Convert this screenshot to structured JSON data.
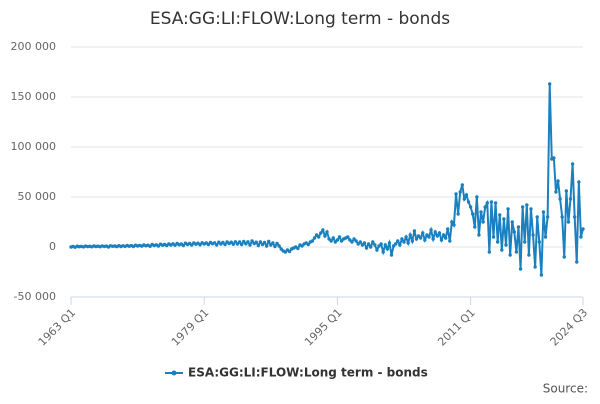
{
  "chart_data": {
    "type": "line",
    "title": "ESA:GG:LI:FLOW:Long term - bonds",
    "source": "Source:",
    "categories": [
      "1963 Q1",
      null,
      null,
      null,
      null,
      null,
      null,
      null,
      null,
      null,
      null,
      null,
      null,
      null,
      null,
      null,
      null,
      null,
      null,
      null,
      null,
      null,
      null,
      null,
      null,
      null,
      null,
      null,
      null,
      null,
      null,
      null,
      null,
      null,
      null,
      null,
      null,
      null,
      null,
      null,
      null,
      null,
      null,
      null,
      null,
      null,
      null,
      null,
      null,
      null,
      null,
      null,
      null,
      null,
      null,
      null,
      null,
      null,
      null,
      null,
      null,
      null,
      null,
      null,
      "1979 Q1",
      null,
      null,
      null,
      null,
      null,
      null,
      null,
      null,
      null,
      null,
      null,
      null,
      null,
      null,
      null,
      null,
      null,
      null,
      null,
      null,
      null,
      null,
      null,
      null,
      null,
      null,
      null,
      null,
      null,
      null,
      null,
      null,
      null,
      null,
      null,
      null,
      null,
      null,
      null,
      null,
      null,
      null,
      null,
      null,
      null,
      null,
      null,
      null,
      null,
      null,
      null,
      null,
      null,
      null,
      null,
      null,
      null,
      null,
      null,
      null,
      null,
      null,
      null,
      "1995 Q1",
      null,
      null,
      null,
      null,
      null,
      null,
      null,
      null,
      null,
      null,
      null,
      null,
      null,
      null,
      null,
      null,
      null,
      null,
      null,
      null,
      null,
      null,
      null,
      null,
      null,
      null,
      null,
      null,
      null,
      null,
      null,
      null,
      null,
      null,
      null,
      null,
      null,
      null,
      null,
      null,
      null,
      null,
      null,
      null,
      null,
      null,
      null,
      null,
      null,
      null,
      null,
      null,
      null,
      null,
      null,
      null,
      null,
      null,
      null,
      null,
      null,
      null,
      null,
      "2011 Q1",
      null,
      null,
      null,
      null,
      null,
      null,
      null,
      null,
      null,
      null,
      null,
      null,
      null,
      null,
      null,
      null,
      null,
      null,
      null,
      null,
      null,
      null,
      null,
      null,
      null,
      null,
      null,
      null,
      null,
      null,
      null,
      null,
      null,
      null,
      null,
      null,
      null,
      null,
      null,
      null,
      null,
      null,
      null,
      null,
      null,
      null,
      null,
      null,
      null,
      null,
      null,
      null,
      null,
      "2024 Q3"
    ],
    "series": [
      {
        "name": "ESA:GG:LI:FLOW:Long term - bonds",
        "color": "#1a80c0",
        "values": [
          0,
          500,
          -200,
          800,
          300,
          600,
          100,
          900,
          400,
          700,
          200,
          1000,
          500,
          800,
          300,
          1100,
          600,
          900,
          0,
          1200,
          700,
          1000,
          400,
          1300,
          500,
          1200,
          600,
          1500,
          800,
          1400,
          500,
          1800,
          1000,
          1600,
          900,
          2000,
          1200,
          1800,
          700,
          2500,
          1500,
          2200,
          1000,
          2800,
          1800,
          2500,
          1500,
          3000,
          2000,
          3200,
          1800,
          3500,
          2200,
          3000,
          1500,
          3800,
          2500,
          3500,
          2000,
          4000,
          2800,
          3800,
          2200,
          4200,
          3000,
          4000,
          2500,
          4500,
          3200,
          4200,
          2000,
          4800,
          3000,
          4500,
          2500,
          5000,
          3500,
          4800,
          2800,
          5200,
          3000,
          5000,
          2500,
          5500,
          3200,
          5200,
          2000,
          6000,
          3500,
          4800,
          1500,
          5000,
          2500,
          4500,
          1000,
          5500,
          2000,
          4000,
          500,
          3500,
          1000,
          -2000,
          -4000,
          -5000,
          -3000,
          -4500,
          -2000,
          -1000,
          0,
          -1500,
          2000,
          1000,
          3000,
          4000,
          2500,
          5000,
          6000,
          9000,
          12000,
          10000,
          14000,
          17000,
          11000,
          15000,
          8000,
          6000,
          9000,
          5000,
          7000,
          10000,
          6000,
          8000,
          9000,
          10000,
          7000,
          5000,
          8000,
          6000,
          3000,
          5000,
          2000,
          4000,
          -1000,
          3000,
          0,
          5000,
          2000,
          -3000,
          1000,
          3000,
          -5000,
          2000,
          -2000,
          4000,
          -8000,
          1000,
          3000,
          6000,
          2000,
          8000,
          5000,
          10000,
          4000,
          12000,
          6000,
          16000,
          8000,
          11000,
          9000,
          14000,
          7000,
          12000,
          10000,
          17000,
          8000,
          15000,
          11000,
          14000,
          7000,
          12000,
          9000,
          18000,
          6000,
          25000,
          22000,
          53000,
          33000,
          55000,
          62000,
          48000,
          52000,
          45000,
          40000,
          33000,
          20000,
          50000,
          12000,
          35000,
          25000,
          40000,
          44000,
          -5000,
          45000,
          10000,
          44000,
          5000,
          32000,
          -3000,
          28000,
          2000,
          38000,
          -8000,
          25000,
          15000,
          -5000,
          20000,
          -22000,
          40000,
          5000,
          42000,
          -8000,
          38000,
          12000,
          -20000,
          30000,
          5000,
          -28000,
          35000,
          10000,
          30000,
          163000,
          88000,
          89000,
          55000,
          66000,
          48000,
          30000,
          -10000,
          56000,
          25000,
          48000,
          83000,
          30000,
          -15000,
          65000,
          10000,
          18000
        ]
      }
    ],
    "ylim": [
      -50000,
      200000
    ],
    "yticks": [
      {
        "value": -50000,
        "label": "-50 000"
      },
      0,
      {
        "value": 50000,
        "label": "50 000"
      },
      {
        "value": 100000,
        "label": "100 000"
      },
      {
        "value": 150000,
        "label": "150 000"
      },
      {
        "value": 200000,
        "label": "200 000"
      }
    ],
    "grid": true
  }
}
